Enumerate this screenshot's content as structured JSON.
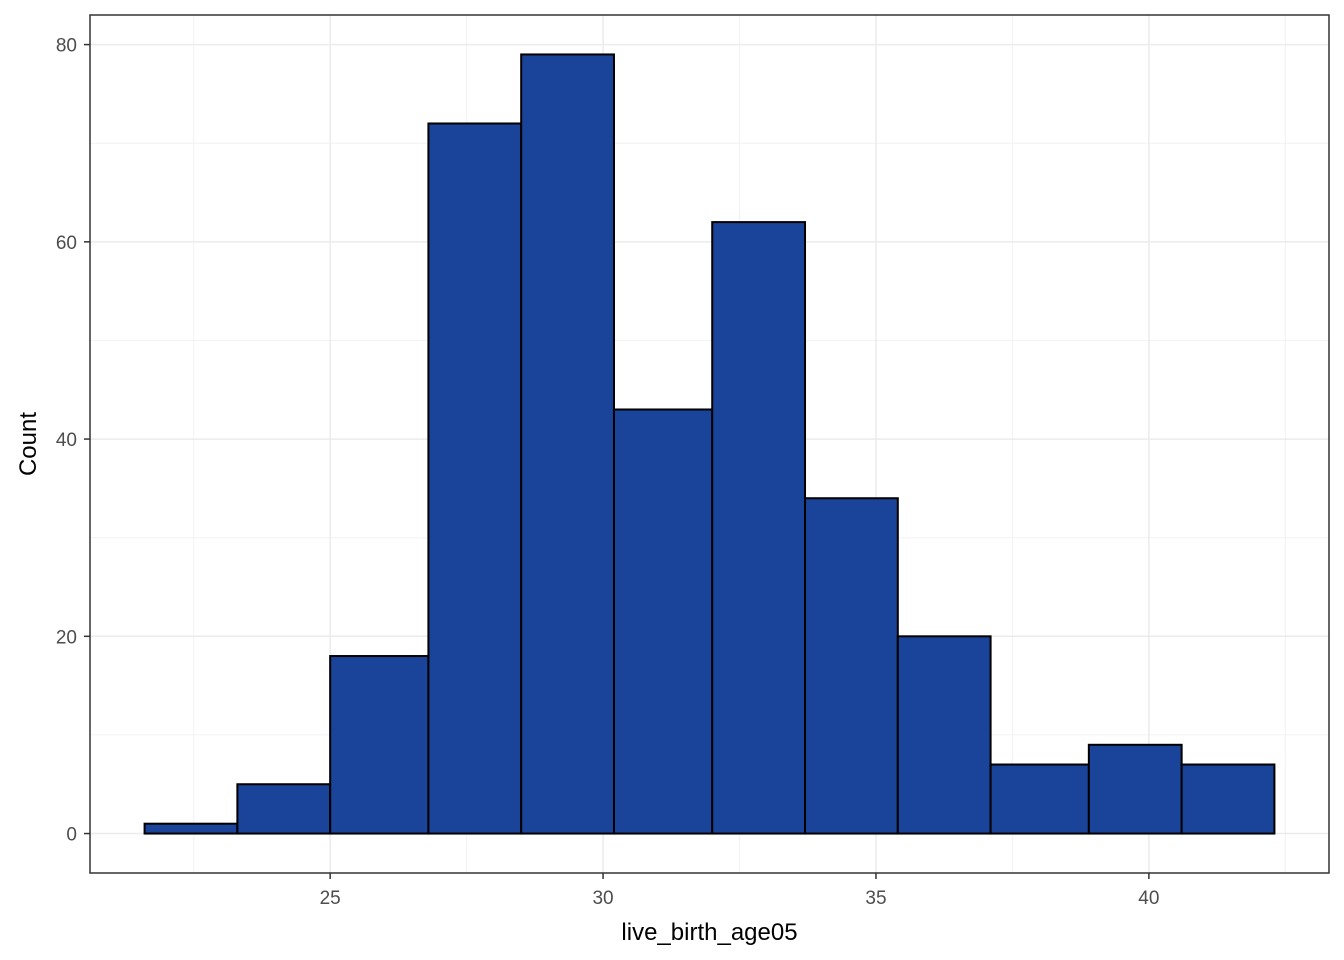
{
  "chart_data": {
    "type": "bar",
    "title": "",
    "xlabel": "live_birth_age05",
    "ylabel": "Count",
    "bins": [
      {
        "x0": 21.6,
        "x1": 23.3,
        "value": 1
      },
      {
        "x0": 23.3,
        "x1": 25.0,
        "value": 5
      },
      {
        "x0": 25.0,
        "x1": 26.8,
        "value": 18
      },
      {
        "x0": 26.8,
        "x1": 28.5,
        "value": 72
      },
      {
        "x0": 28.5,
        "x1": 30.2,
        "value": 79
      },
      {
        "x0": 30.2,
        "x1": 32.0,
        "value": 43
      },
      {
        "x0": 32.0,
        "x1": 33.7,
        "value": 62
      },
      {
        "x0": 33.7,
        "x1": 35.4,
        "value": 34
      },
      {
        "x0": 35.4,
        "x1": 37.1,
        "value": 20
      },
      {
        "x0": 37.1,
        "x1": 38.9,
        "value": 7
      },
      {
        "x0": 38.9,
        "x1": 40.6,
        "value": 9
      },
      {
        "x0": 40.6,
        "x1": 42.3,
        "value": 7
      }
    ],
    "xlim": [
      20.6,
      43.3
    ],
    "ylim": [
      -4,
      83
    ],
    "xticks": [
      25,
      30,
      35,
      40
    ],
    "yticks": [
      0,
      20,
      40,
      60,
      80
    ],
    "xtick_labels": [
      "25",
      "30",
      "35",
      "40"
    ],
    "ytick_labels": [
      "0",
      "20",
      "40",
      "60",
      "80"
    ],
    "grid": true,
    "legend": "none",
    "colors": {
      "bar_fill": "#194499",
      "bar_stroke": "#000000",
      "grid_major": "#ebebeb",
      "grid_minor": "#f2f2f2",
      "panel_border": "#333333",
      "tick_text": "#4d4d4d"
    }
  }
}
